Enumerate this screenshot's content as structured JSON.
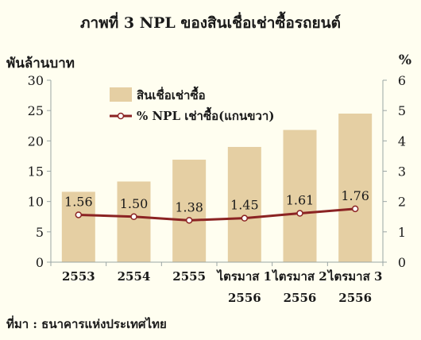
{
  "title": "ภาพที่ 3  NPL ของสินเชื่อเช่าซื้อรถยนต์",
  "source": "ที่มา : ธนาคารแห่งประเทศไทย",
  "colors": {
    "background": "#fffef0",
    "bar": "#e5cfa3",
    "line": "#8b2323",
    "marker_fill": "#ffffff",
    "axis": "#9aa5a5",
    "text": "#1a1a1a"
  },
  "chart_data": {
    "type": "bar",
    "categories": [
      [
        "2553"
      ],
      [
        "2554"
      ],
      [
        "2555"
      ],
      [
        "ไตรมาส 1",
        "2556"
      ],
      [
        "ไตรมาส 2",
        "2556"
      ],
      [
        "ไตรมาส 3",
        "2556"
      ]
    ],
    "series": [
      {
        "name": "สินเชื่อเช่าซื้อ",
        "type": "bar",
        "axis": "left",
        "values": [
          11.6,
          13.3,
          16.9,
          19.0,
          21.8,
          24.5
        ]
      },
      {
        "name": "% NPL เช่าซื้อ(แกนขวา)",
        "type": "line",
        "axis": "right",
        "values": [
          1.56,
          1.5,
          1.38,
          1.45,
          1.61,
          1.76
        ],
        "labels": [
          "1.56",
          "1.50",
          "1.38",
          "1.45",
          "1.61",
          "1.76"
        ]
      }
    ],
    "ylabel_left": "พันล้านบาท",
    "ylabel_right": "%",
    "ylim_left": [
      0,
      30
    ],
    "yticks_left": [
      0,
      5,
      10,
      15,
      20,
      25,
      30
    ],
    "ylim_right": [
      0,
      6
    ],
    "yticks_right": [
      0,
      1,
      2,
      3,
      4,
      5,
      6
    ],
    "grid": false,
    "legend_position": "top-left"
  }
}
